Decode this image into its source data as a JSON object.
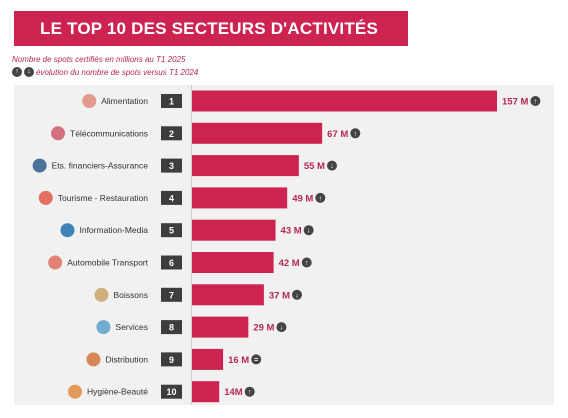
{
  "header": {
    "title": "LE TOP 10 DES SECTEURS D'ACTIVITÉS",
    "subtitle": "Nombre de spots certifiés en millions au T1 2025",
    "legend_text": "évolution du nombre de spots versus T1 2024"
  },
  "colors": {
    "brand": "#cc2350",
    "value_text": "#b5294f",
    "rank_badge": "#3d3d3d",
    "trend_badge": "#444444",
    "panel": "#f1f1f1"
  },
  "chart_data": {
    "type": "bar",
    "orientation": "horizontal",
    "title": "LE TOP 10 DES SECTEURS D'ACTIVITÉS",
    "subtitle": "Nombre de spots certifiés en millions au T1 2025",
    "categories": [
      "Alimentation",
      "Télécommunications",
      "Ets. financiers-Assurance",
      "Tourisme - Restauration",
      "Information-Media",
      "Automobile Transport",
      "Boissons",
      "Services",
      "Distribution",
      "Hygiène-Beauté"
    ],
    "ranks": [
      "1",
      "2",
      "3",
      "4",
      "5",
      "6",
      "7",
      "8",
      "9",
      "10"
    ],
    "values": [
      157,
      67,
      55,
      49,
      43,
      42,
      37,
      29,
      16,
      14
    ],
    "value_labels": [
      "157 M",
      "67 M",
      "55 M",
      "49 M",
      "43 M",
      "42 M",
      "37 M",
      "29 M",
      "16 M",
      "14M"
    ],
    "trend": [
      "up",
      "up",
      "down",
      "up",
      "down",
      "up",
      "down",
      "down",
      "equal",
      "up"
    ],
    "icons": [
      "cutlery-icon",
      "phone-icon",
      "bank-icon",
      "travel-icon",
      "play-icon",
      "car-icon",
      "bottle-icon",
      "gears-icon",
      "box-icon",
      "cosmetics-icon"
    ],
    "xlim": [
      0,
      157
    ]
  }
}
